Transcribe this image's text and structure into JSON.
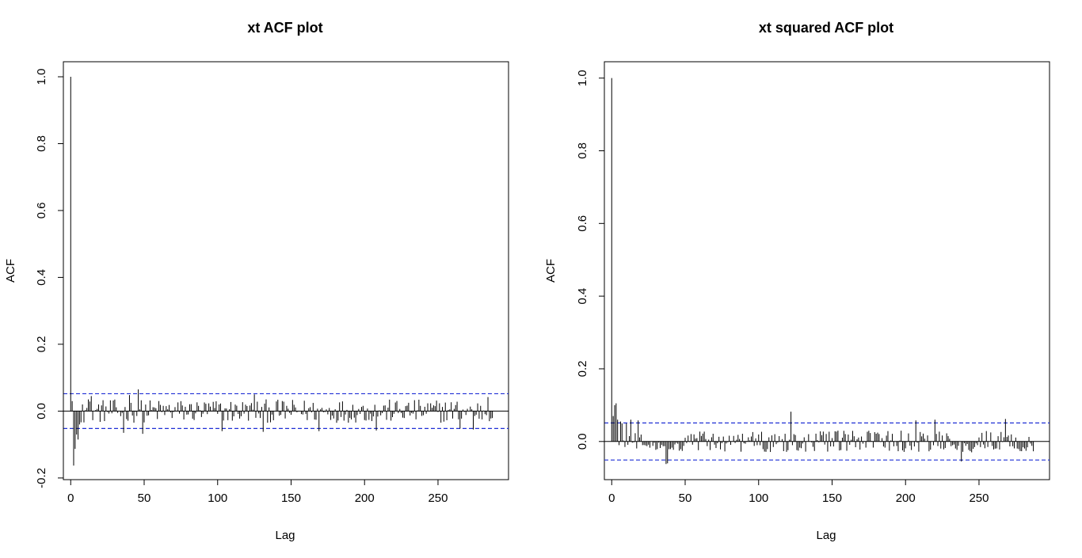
{
  "chart_data": [
    {
      "type": "bar",
      "title": "xt ACF plot",
      "xlabel": "Lag",
      "ylabel": "ACF",
      "xlim": [
        -5,
        298
      ],
      "ylim": [
        -0.205,
        1.045
      ],
      "xticks": [
        0,
        50,
        100,
        150,
        200,
        250
      ],
      "yticks": [
        -0.2,
        0.0,
        0.2,
        0.4,
        0.6,
        0.8,
        1.0
      ],
      "xtick_labels": [
        "0",
        "50",
        "100",
        "150",
        "200",
        "250"
      ],
      "ytick_labels": [
        "-0.2",
        "0.0",
        "0.2",
        "0.4",
        "0.6",
        "0.8",
        "1.0"
      ],
      "ci_upper": 0.052,
      "ci_lower": -0.052,
      "max_lag": 287,
      "highlighted_values": {
        "0": 1.0,
        "1": 0.03,
        "2": -0.163,
        "3": -0.113,
        "4": -0.07,
        "5": -0.085,
        "6": -0.04,
        "8": 0.02,
        "12": 0.035,
        "14": 0.045,
        "36": -0.065,
        "40": 0.048,
        "46": 0.065,
        "49": -0.068,
        "103": -0.06,
        "125": 0.05,
        "131": -0.062,
        "169": -0.06,
        "208": -0.058,
        "265": -0.052,
        "274": -0.055,
        "284": 0.042
      },
      "baseline_amplitude": 0.035
    },
    {
      "type": "bar",
      "title": "xt squared ACF plot",
      "xlabel": "Lag",
      "ylabel": "ACF",
      "xlim": [
        -5,
        298
      ],
      "ylim": [
        -0.105,
        1.045
      ],
      "xticks": [
        0,
        50,
        100,
        150,
        200,
        250
      ],
      "yticks": [
        0.0,
        0.2,
        0.4,
        0.6,
        0.8,
        1.0
      ],
      "xtick_labels": [
        "0",
        "50",
        "100",
        "150",
        "200",
        "250"
      ],
      "ytick_labels": [
        "0.0",
        "0.2",
        "0.4",
        "0.6",
        "0.8",
        "1.0"
      ],
      "ci_upper": 0.051,
      "ci_lower": -0.051,
      "max_lag": 287,
      "highlighted_values": {
        "0": 1.0,
        "1": 0.07,
        "2": 0.1,
        "3": 0.105,
        "4": 0.06,
        "5": -0.01,
        "6": 0.055,
        "7": 0.05,
        "10": 0.05,
        "13": 0.06,
        "18": 0.058,
        "37": -0.062,
        "38": -0.06,
        "122": 0.082,
        "207": 0.058,
        "220": 0.06,
        "238": -0.055,
        "268": 0.062
      },
      "baseline_amplitude": 0.03
    }
  ]
}
